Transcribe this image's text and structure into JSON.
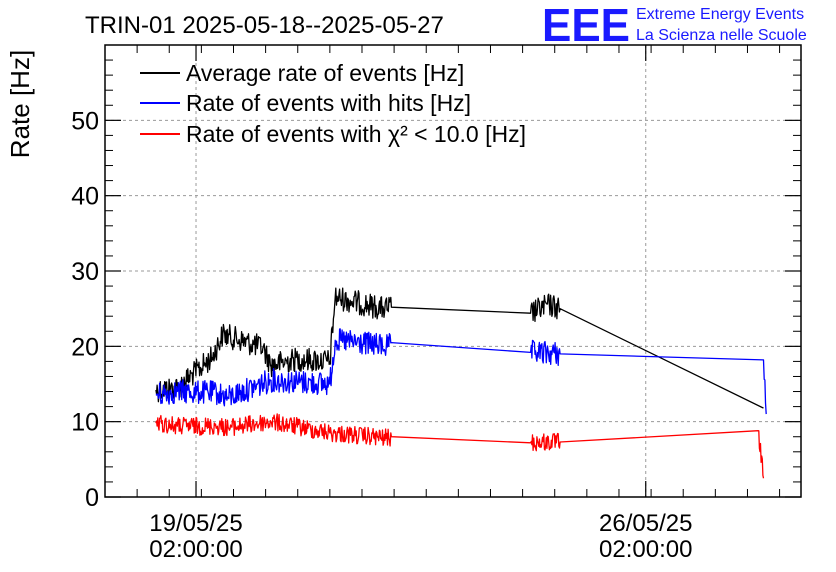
{
  "chart_data": {
    "type": "line",
    "title": "TRIN-01 2025-05-18--2025-05-27",
    "ylabel": "Rate [Hz]",
    "xlabel": "",
    "ylim": [
      0,
      60
    ],
    "yticks": [
      0,
      10,
      20,
      30,
      40,
      50
    ],
    "xlim": [
      "2025-05-17T16:00",
      "2025-05-28T12:00"
    ],
    "xticks": [
      {
        "t": "2025-05-19T02:00",
        "date": "19/05/25",
        "time": "02:00:00"
      },
      {
        "t": "2025-05-26T02:00",
        "date": "26/05/25",
        "time": "02:00:00"
      }
    ],
    "grid": true,
    "legend_position": "top-left",
    "logo": {
      "mark": "EEE",
      "line1": "Extreme Energy Events",
      "line2": "La Scienza nelle Scuole",
      "color": "#1a1aff"
    },
    "series": [
      {
        "name": "Average rate of events [Hz]",
        "color": "#000000",
        "noise": 1.6,
        "points": [
          [
            "2025-05-18T11:00",
            14.2
          ],
          [
            "2025-05-18T19:00",
            14.5
          ],
          [
            "2025-05-19T08:00",
            18.5
          ],
          [
            "2025-05-19T12:00",
            21.6
          ],
          [
            "2025-05-20T03:00",
            19.8
          ],
          [
            "2025-05-20T06:00",
            17.5
          ],
          [
            "2025-05-20T16:00",
            18.3
          ],
          [
            "2025-05-21T04:00",
            18.0
          ],
          [
            "2025-05-21T06:00",
            26.5
          ],
          [
            "2025-05-22T00:00",
            25.0
          ],
          [
            "2025-05-22T03:00",
            25.2
          ],
          [
            "2025-05-24T07:00",
            24.4
          ],
          [
            "2025-05-24T14:00",
            25.5
          ],
          [
            "2025-05-24T18:00",
            25.0
          ],
          [
            "2025-05-27T22:00",
            11.8
          ]
        ]
      },
      {
        "name": "Rate of events with hits [Hz]",
        "color": "#0000ff",
        "noise": 1.6,
        "points": [
          [
            "2025-05-18T11:00",
            13.5
          ],
          [
            "2025-05-18T19:00",
            14.0
          ],
          [
            "2025-05-19T10:00",
            13.8
          ],
          [
            "2025-05-19T14:00",
            13.2
          ],
          [
            "2025-05-20T06:00",
            15.5
          ],
          [
            "2025-05-21T04:00",
            15.0
          ],
          [
            "2025-05-21T06:00",
            20.8
          ],
          [
            "2025-05-22T02:00",
            20.0
          ],
          [
            "2025-05-22T03:00",
            20.5
          ],
          [
            "2025-05-24T07:00",
            19.2
          ],
          [
            "2025-05-24T18:00",
            19.0
          ],
          [
            "2025-05-27T22:00",
            18.2
          ],
          [
            "2025-05-27T23:00",
            11.0
          ]
        ]
      },
      {
        "name": "Rate of events with χ² < 10.0 [Hz]",
        "color": "#ff0000",
        "noise": 1.2,
        "points": [
          [
            "2025-05-18T11:00",
            9.8
          ],
          [
            "2025-05-18T19:00",
            9.4
          ],
          [
            "2025-05-19T10:00",
            9.4
          ],
          [
            "2025-05-19T14:00",
            9.2
          ],
          [
            "2025-05-20T06:00",
            10.0
          ],
          [
            "2025-05-21T04:00",
            8.5
          ],
          [
            "2025-05-22T02:00",
            7.8
          ],
          [
            "2025-05-22T03:00",
            8.0
          ],
          [
            "2025-05-24T07:00",
            7.2
          ],
          [
            "2025-05-24T18:00",
            7.3
          ],
          [
            "2025-05-27T20:00",
            8.8
          ],
          [
            "2025-05-27T22:00",
            2.5
          ]
        ]
      }
    ]
  }
}
